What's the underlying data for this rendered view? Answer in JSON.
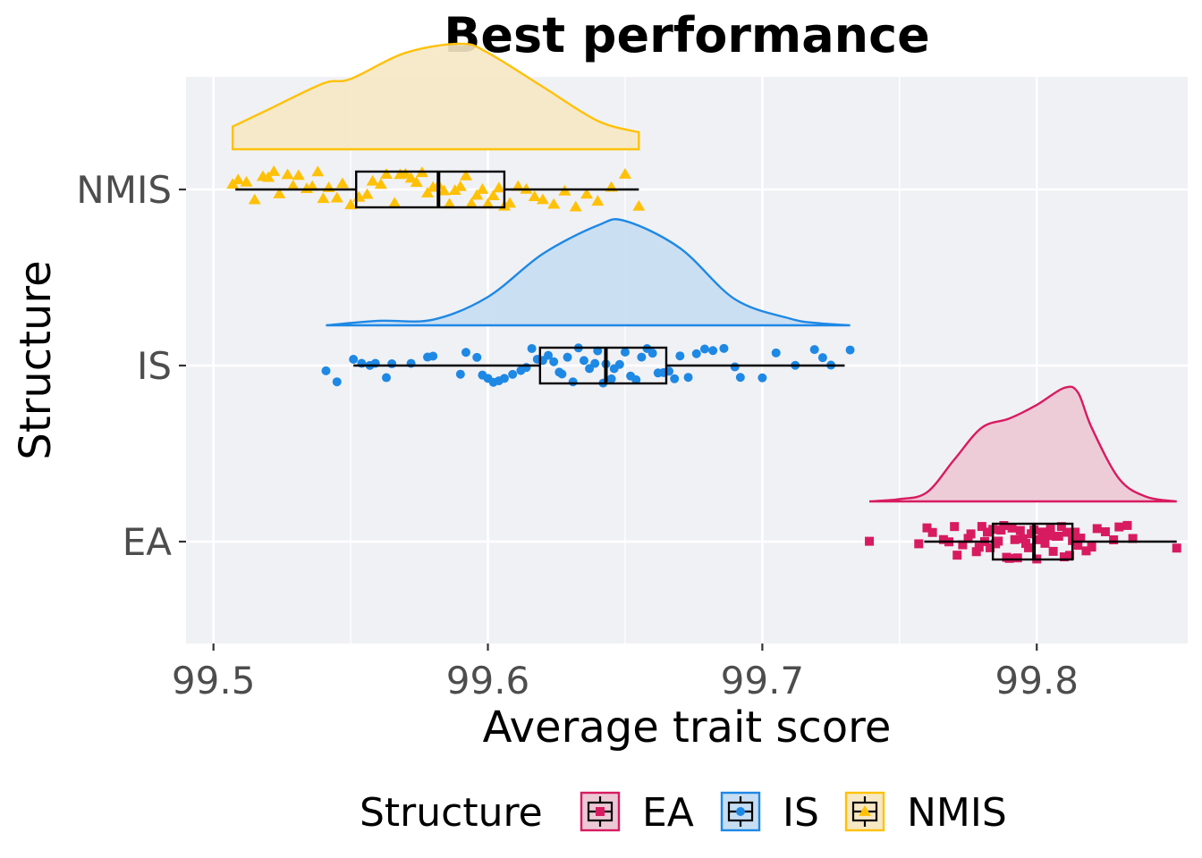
{
  "chart_data": {
    "type": "raincloud",
    "title": "Best performance",
    "xlabel": "Average trait score",
    "ylabel": "Structure",
    "xlim": [
      99.49,
      99.855
    ],
    "x_ticks": [
      99.5,
      99.6,
      99.7,
      99.8
    ],
    "x_tick_labels": [
      "99.5",
      "99.6",
      "99.7",
      "99.8"
    ],
    "categories": [
      "EA",
      "IS",
      "NMIS"
    ],
    "grid": true,
    "legend": {
      "title": "Structure",
      "position": "bottom",
      "entries": [
        "EA",
        "IS",
        "NMIS"
      ]
    },
    "series": [
      {
        "name": "EA",
        "color": "#d81b60",
        "fill": "#ecc8d5",
        "marker": "square",
        "box": {
          "whisker_low": 99.759,
          "q1": 99.784,
          "median": 99.799,
          "q3": 99.813,
          "whisker_high": 99.851
        },
        "density": {
          "x": [
            99.739,
            99.75,
            99.76,
            99.77,
            99.78,
            99.79,
            99.8,
            99.81,
            99.815,
            99.82,
            99.83,
            99.84,
            99.851
          ],
          "y": [
            0.0,
            0.02,
            0.08,
            0.37,
            0.65,
            0.73,
            0.85,
            1.0,
            0.96,
            0.65,
            0.2,
            0.04,
            0.0
          ]
        },
        "points": [
          99.739,
          99.757,
          99.76,
          99.762,
          99.766,
          99.768,
          99.77,
          99.771,
          99.773,
          99.775,
          99.776,
          99.778,
          99.779,
          99.78,
          99.781,
          99.782,
          99.783,
          99.784,
          99.785,
          99.786,
          99.787,
          99.788,
          99.789,
          99.79,
          99.791,
          99.792,
          99.793,
          99.794,
          99.795,
          99.796,
          99.797,
          99.798,
          99.799,
          99.8,
          99.801,
          99.802,
          99.803,
          99.804,
          99.805,
          99.806,
          99.807,
          99.808,
          99.809,
          99.81,
          99.811,
          99.812,
          99.813,
          99.814,
          99.815,
          99.816,
          99.818,
          99.82,
          99.822,
          99.825,
          99.828,
          99.83,
          99.833,
          99.835,
          99.851
        ]
      },
      {
        "name": "IS",
        "color": "#1e88e5",
        "fill": "#c6ddf3",
        "marker": "circle",
        "box": {
          "whisker_low": 99.551,
          "q1": 99.619,
          "median": 99.643,
          "q3": 99.665,
          "whisker_high": 99.73
        },
        "density": {
          "x": [
            99.541,
            99.56,
            99.58,
            99.6,
            99.62,
            99.64,
            99.65,
            99.67,
            99.69,
            99.71,
            99.72,
            99.732
          ],
          "y": [
            0.0,
            0.04,
            0.05,
            0.25,
            0.63,
            0.88,
            0.92,
            0.68,
            0.23,
            0.06,
            0.02,
            0.0
          ]
        },
        "points": [
          99.541,
          99.545,
          99.551,
          99.554,
          99.557,
          99.559,
          99.563,
          99.565,
          99.572,
          99.578,
          99.58,
          99.59,
          99.592,
          99.596,
          99.598,
          99.6,
          99.602,
          99.604,
          99.606,
          99.609,
          99.612,
          99.614,
          99.616,
          99.618,
          99.62,
          99.622,
          99.624,
          99.626,
          99.627,
          99.629,
          99.631,
          99.633,
          99.635,
          99.637,
          99.639,
          99.64,
          99.642,
          99.643,
          99.645,
          99.646,
          99.648,
          99.65,
          99.652,
          99.654,
          99.656,
          99.658,
          99.66,
          99.662,
          99.664,
          99.666,
          99.668,
          99.67,
          99.673,
          99.676,
          99.679,
          99.682,
          99.686,
          99.69,
          99.692,
          99.7,
          99.705,
          99.712,
          99.719,
          99.722,
          99.725,
          99.732
        ]
      },
      {
        "name": "NMIS",
        "color": "#ffc107",
        "fill": "#f6e8c4",
        "marker": "triangle",
        "box": {
          "whisker_low": 99.508,
          "q1": 99.552,
          "median": 99.582,
          "q3": 99.606,
          "whisker_high": 99.655
        },
        "density": {
          "x": [
            99.507,
            99.52,
            99.54,
            99.55,
            99.57,
            99.59,
            99.6,
            99.62,
            99.64,
            99.655
          ],
          "y": [
            0.2,
            0.35,
            0.58,
            0.62,
            0.85,
            0.93,
            0.85,
            0.55,
            0.25,
            0.15
          ]
        },
        "points": [
          99.507,
          99.509,
          99.512,
          99.515,
          99.518,
          99.52,
          99.522,
          99.524,
          99.527,
          99.529,
          99.531,
          99.534,
          99.536,
          99.538,
          99.54,
          99.542,
          99.545,
          99.547,
          99.55,
          99.553,
          99.556,
          99.558,
          99.561,
          99.563,
          99.566,
          99.568,
          99.57,
          99.572,
          99.574,
          99.576,
          99.578,
          99.58,
          99.582,
          99.584,
          99.586,
          99.588,
          99.59,
          99.592,
          99.594,
          99.596,
          99.598,
          99.6,
          99.602,
          99.604,
          99.606,
          99.608,
          99.611,
          99.614,
          99.617,
          99.62,
          99.624,
          99.628,
          99.632,
          99.636,
          99.64,
          99.645,
          99.65,
          99.655
        ]
      }
    ]
  }
}
